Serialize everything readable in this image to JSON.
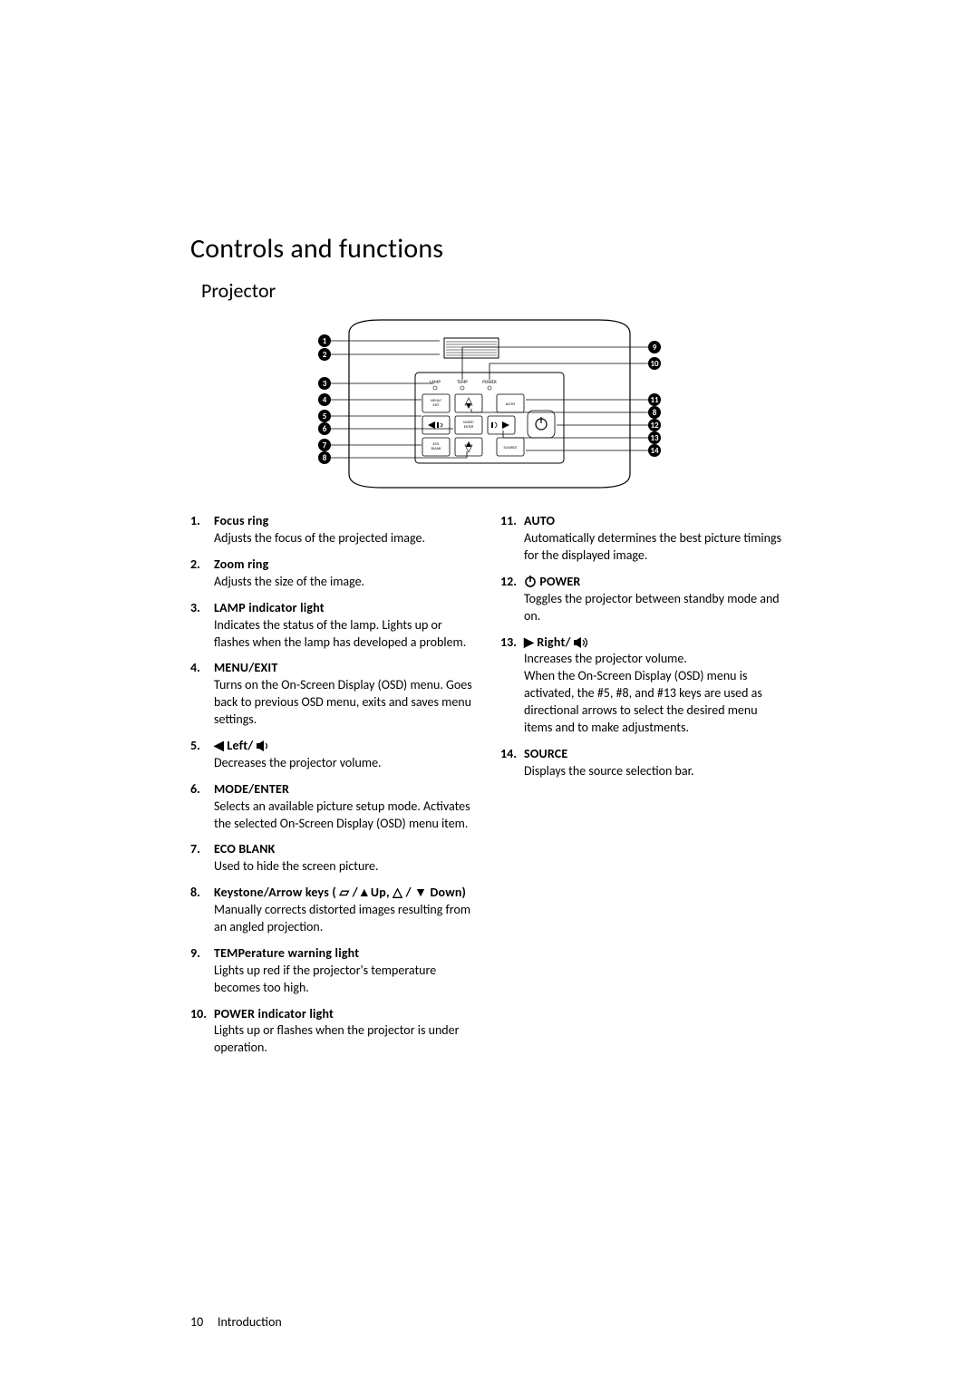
{
  "page": {
    "title": "Controls and functions",
    "subtitle": "Projector",
    "footer_page": "10",
    "footer_section": "Introduction"
  },
  "diagram": {
    "outer_stroke": "#000000",
    "fill": "#ffffff",
    "callout_fill": "#000000",
    "callout_text": "#ffffff",
    "button_labels": {
      "lamp": "LAMP",
      "temp": "TEMP",
      "power": "POWER",
      "menu_exit": "MENU/\nEXIT",
      "mode_enter": "MODE/\nENTER",
      "eco_blank": "ECO\nBLANK",
      "auto": "AUTO",
      "source": "SOURCE"
    },
    "left_callouts": [
      "1",
      "2",
      "3",
      "4",
      "5",
      "6",
      "7",
      "8"
    ],
    "right_callouts": [
      "9",
      "10",
      "11",
      "8",
      "12",
      "13",
      "14"
    ]
  },
  "items_left": [
    {
      "n": "1.",
      "term": "Focus ring",
      "desc": "Adjusts the focus of the projected image."
    },
    {
      "n": "2.",
      "term": "Zoom ring",
      "desc": "Adjusts the size of the image."
    },
    {
      "n": "3.",
      "term": "LAMP indicator light",
      "desc": "Indicates the status of the lamp. Lights up or flashes when the lamp has developed a problem."
    },
    {
      "n": "4.",
      "term": "MENU/EXIT",
      "desc": "Turns on the On-Screen Display (OSD) menu. Goes back to previous OSD menu, exits and saves menu settings."
    },
    {
      "n": "5.",
      "term_html": "◀ Left/ ",
      "icon": "vol-down",
      "desc": "Decreases the projector volume."
    },
    {
      "n": "6.",
      "term": "MODE/ENTER",
      "desc": "Selects an available picture setup mode. Activates the selected On-Screen Display (OSD) menu item."
    },
    {
      "n": "7.",
      "term": "ECO BLANK",
      "desc": "Used to hide the screen picture."
    },
    {
      "n": "8.",
      "term_html": "Keystone/Arrow keys ( ▱ /▲Up,  △ / ▼ Down)",
      "desc": "Manually corrects distorted images resulting from an angled projection."
    },
    {
      "n": "9.",
      "term": "TEMPerature warning light",
      "desc": "Lights up red if the projector's temperature becomes too high."
    },
    {
      "n": "10.",
      "term": "POWER indicator light",
      "desc": "Lights up or flashes when the projector is under operation."
    }
  ],
  "items_right": [
    {
      "n": "11.",
      "term": "AUTO",
      "desc": "Automatically determines the best picture timings for the displayed image."
    },
    {
      "n": "12.",
      "term_html": "  POWER",
      "icon_prefix": "power",
      "desc": "Toggles the projector between standby mode and on."
    },
    {
      "n": "13.",
      "term_html": "▶ Right/ ",
      "icon": "vol-up",
      "desc": "Increases the projector volume.",
      "desc2": "When the On-Screen Display (OSD) menu is activated, the #5, #8, and #13 keys are used as directional arrows to select the desired menu items and to make adjustments."
    },
    {
      "n": "14.",
      "term": "SOURCE",
      "desc": "Displays the source selection bar."
    }
  ]
}
